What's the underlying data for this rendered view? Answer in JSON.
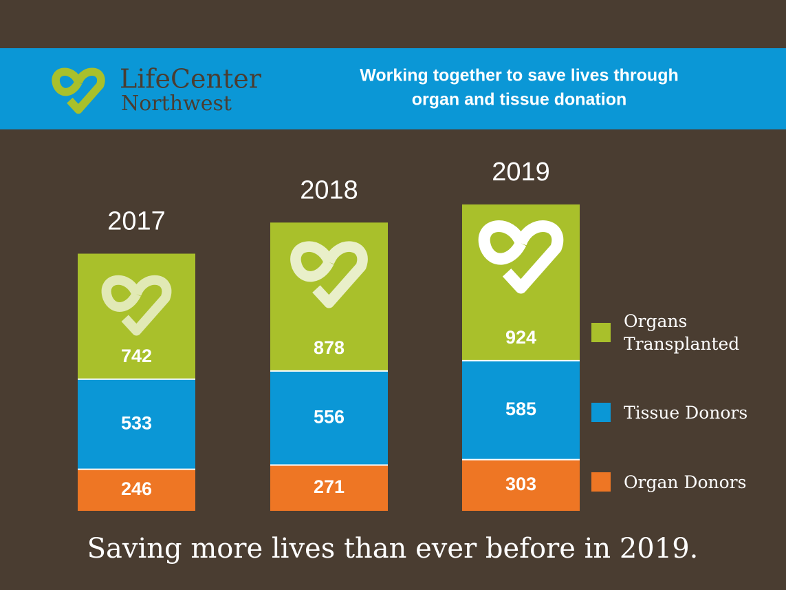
{
  "header": {
    "logo_line1": "LifeCenter",
    "logo_line2": "Northwest",
    "tagline_lines": [
      "Working together to save lives through",
      "organ and tissue donation"
    ]
  },
  "chart_data": {
    "type": "stacked-bar",
    "categories": [
      "2017",
      "2018",
      "2019"
    ],
    "series": [
      {
        "name": "Organ Donors",
        "color": "#ee7624",
        "values": [
          246,
          271,
          303
        ]
      },
      {
        "name": "Tissue Donors",
        "color": "#0b97d6",
        "values": [
          533,
          556,
          585
        ]
      },
      {
        "name": "Organs Transplanted",
        "color": "#a9c02b",
        "values": [
          742,
          878,
          924
        ]
      }
    ]
  },
  "footer": {
    "text": "Saving more lives than ever before in 2019."
  }
}
